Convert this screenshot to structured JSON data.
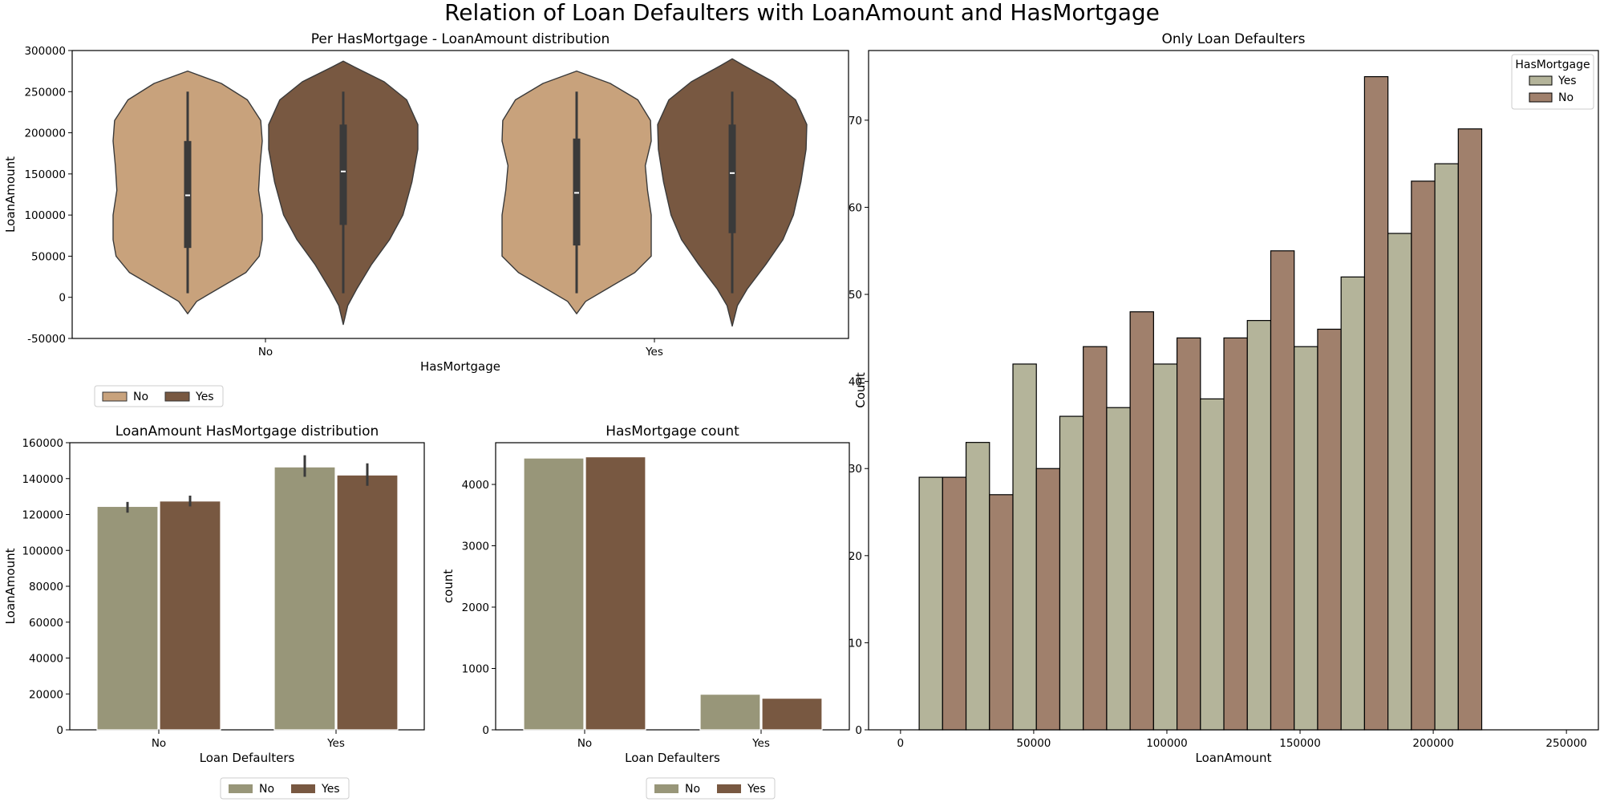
{
  "figure": {
    "suptitle": "Relation of Loan Defaulters with LoanAmount and HasMortgage"
  },
  "colors": {
    "violin_no": "#c8a27c",
    "violin_yes": "#785841",
    "bar_no": "#989679",
    "bar_yes": "#785841",
    "hist_yes": "#b4b49a",
    "hist_no": "#a0806c",
    "dark": "#3a3a3a"
  },
  "chart_data": [
    {
      "id": "violin",
      "type": "violin",
      "title": "Per HasMortgage - LoanAmount distribution",
      "xlabel": "HasMortgage",
      "ylabel": "LoanAmount",
      "categories": [
        "No",
        "Yes"
      ],
      "ylim": [
        -50000,
        300000
      ],
      "yticks": [
        -50000,
        0,
        50000,
        100000,
        150000,
        200000,
        250000,
        300000
      ],
      "legend": {
        "placement": "below-left",
        "entries": [
          "No",
          "Yes"
        ]
      },
      "series": [
        {
          "name": "No",
          "violins": [
            {
              "category": "No",
              "min": -20000,
              "max": 275000,
              "q1": 60000,
              "median": 124000,
              "q3": 190000,
              "whisker_low": 5000,
              "whisker_high": 250000,
              "profile": [
                [
                  -20000,
                  0.0
                ],
                [
                  -5000,
                  0.12
                ],
                [
                  10000,
                  0.4
                ],
                [
                  30000,
                  0.78
                ],
                [
                  50000,
                  0.96
                ],
                [
                  70000,
                  1.0
                ],
                [
                  100000,
                  1.0
                ],
                [
                  130000,
                  0.95
                ],
                [
                  160000,
                  0.97
                ],
                [
                  190000,
                  1.0
                ],
                [
                  215000,
                  0.98
                ],
                [
                  240000,
                  0.8
                ],
                [
                  260000,
                  0.45
                ],
                [
                  275000,
                  0.0
                ]
              ]
            },
            {
              "category": "Yes",
              "min": -20000,
              "max": 275000,
              "q1": 63000,
              "median": 127000,
              "q3": 193000,
              "whisker_low": 5000,
              "whisker_high": 250000,
              "profile": [
                [
                  -20000,
                  0.0
                ],
                [
                  -5000,
                  0.12
                ],
                [
                  10000,
                  0.4
                ],
                [
                  30000,
                  0.78
                ],
                [
                  50000,
                  1.0
                ],
                [
                  70000,
                  1.0
                ],
                [
                  100000,
                  1.0
                ],
                [
                  130000,
                  0.95
                ],
                [
                  160000,
                  0.92
                ],
                [
                  190000,
                  1.0
                ],
                [
                  215000,
                  0.99
                ],
                [
                  240000,
                  0.82
                ],
                [
                  260000,
                  0.45
                ],
                [
                  275000,
                  0.0
                ]
              ]
            }
          ]
        },
        {
          "name": "Yes",
          "violins": [
            {
              "category": "No",
              "min": -33000,
              "max": 287000,
              "q1": 88000,
              "median": 153000,
              "q3": 210000,
              "whisker_low": 5000,
              "whisker_high": 250000,
              "profile": [
                [
                  -33000,
                  0.0
                ],
                [
                  -10000,
                  0.06
                ],
                [
                  10000,
                  0.18
                ],
                [
                  40000,
                  0.38
                ],
                [
                  70000,
                  0.62
                ],
                [
                  100000,
                  0.8
                ],
                [
                  140000,
                  0.92
                ],
                [
                  180000,
                  1.0
                ],
                [
                  210000,
                  1.0
                ],
                [
                  240000,
                  0.85
                ],
                [
                  262000,
                  0.55
                ],
                [
                  280000,
                  0.15
                ],
                [
                  287000,
                  0.0
                ]
              ]
            },
            {
              "category": "Yes",
              "min": -35000,
              "max": 290000,
              "q1": 78000,
              "median": 151000,
              "q3": 210000,
              "whisker_low": 5000,
              "whisker_high": 250000,
              "profile": [
                [
                  -35000,
                  0.0
                ],
                [
                  -10000,
                  0.07
                ],
                [
                  10000,
                  0.2
                ],
                [
                  40000,
                  0.45
                ],
                [
                  70000,
                  0.68
                ],
                [
                  100000,
                  0.82
                ],
                [
                  140000,
                  0.92
                ],
                [
                  180000,
                  0.99
                ],
                [
                  210000,
                  1.0
                ],
                [
                  240000,
                  0.85
                ],
                [
                  262000,
                  0.55
                ],
                [
                  282000,
                  0.15
                ],
                [
                  290000,
                  0.0
                ]
              ]
            }
          ]
        }
      ]
    },
    {
      "id": "barmean",
      "type": "bar",
      "title": "LoanAmount HasMortgage distribution",
      "xlabel": "Loan Defaulters",
      "ylabel": "LoanAmount",
      "categories": [
        "No",
        "Yes"
      ],
      "ylim": [
        0,
        160000
      ],
      "yticks": [
        0,
        20000,
        40000,
        60000,
        80000,
        100000,
        120000,
        140000,
        160000
      ],
      "legend": {
        "placement": "below-center",
        "entries": [
          "No",
          "Yes"
        ]
      },
      "series": [
        {
          "name": "No",
          "values": [
            124500,
            146500
          ],
          "err_low": [
            121000,
            141000
          ],
          "err_high": [
            127000,
            153000
          ]
        },
        {
          "name": "Yes",
          "values": [
            127500,
            142000
          ],
          "err_low": [
            124500,
            136000
          ],
          "err_high": [
            130500,
            148500
          ]
        }
      ]
    },
    {
      "id": "count",
      "type": "bar",
      "title": "HasMortgage count",
      "xlabel": "Loan Defaulters",
      "ylabel": "count",
      "categories": [
        "No",
        "Yes"
      ],
      "ylim": [
        0,
        4680
      ],
      "yticks": [
        0,
        1000,
        2000,
        3000,
        4000
      ],
      "legend": {
        "placement": "below-center",
        "entries": [
          "No",
          "Yes"
        ]
      },
      "series": [
        {
          "name": "No",
          "values": [
            4430,
            580
          ]
        },
        {
          "name": "Yes",
          "values": [
            4450,
            515
          ]
        }
      ]
    },
    {
      "id": "hist",
      "type": "bar",
      "title": "Only Loan Defaulters",
      "xlabel": "LoanAmount",
      "ylabel": "Count",
      "xlim": [
        -12000,
        262000
      ],
      "ylim": [
        0,
        78
      ],
      "xticks": [
        0,
        50000,
        100000,
        150000,
        200000,
        250000
      ],
      "yticks": [
        0,
        10,
        20,
        30,
        40,
        50,
        60,
        70
      ],
      "legend": {
        "placement": "top-right",
        "title": "HasMortgage",
        "entries": [
          "Yes",
          "No"
        ]
      },
      "bins": [
        [
          7000,
          24600
        ],
        [
          24600,
          42200
        ],
        [
          42200,
          59800
        ],
        [
          59800,
          77400
        ],
        [
          77400,
          95000
        ],
        [
          95000,
          112600
        ],
        [
          112600,
          130200
        ],
        [
          130200,
          147800
        ],
        [
          147800,
          165400
        ],
        [
          165400,
          183000
        ],
        [
          183000,
          200600
        ],
        [
          200600,
          218200
        ],
        [
          218200,
          235800
        ],
        [
          235800,
          253400
        ]
      ],
      "series": [
        {
          "name": "Yes",
          "values": [
            29,
            33,
            42,
            36,
            37,
            42,
            38,
            47,
            44,
            52,
            57,
            65,
            0,
            0
          ]
        },
        {
          "name": "No",
          "values": [
            29,
            27,
            30,
            44,
            48,
            45,
            45,
            55,
            46,
            75,
            63,
            69,
            0,
            0
          ]
        }
      ]
    }
  ]
}
